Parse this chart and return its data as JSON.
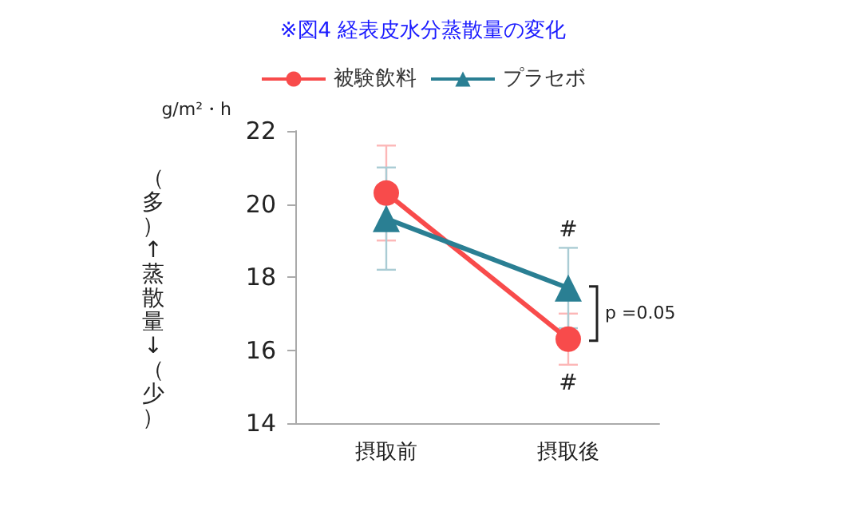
{
  "chart_data": {
    "type": "line",
    "title": "※図4 経表皮水分蒸散量の変化",
    "ylabel": "g/m²・h",
    "categories": [
      "摂取前",
      "摂取後"
    ],
    "series": [
      {
        "name": "被験飲料",
        "color": "#f84b4b",
        "marker": "circle",
        "values": [
          20.3,
          16.3
        ],
        "errors": [
          1.3,
          0.7
        ]
      },
      {
        "name": "プラセボ",
        "color": "#2a7f93",
        "marker": "triangle",
        "values": [
          19.6,
          17.7
        ],
        "errors": [
          1.4,
          1.1
        ]
      }
    ],
    "ylim": [
      14,
      22
    ],
    "yticks": [
      14,
      16,
      18,
      20,
      22
    ],
    "grid": false,
    "legend": "top",
    "annotations": [
      "（多）↑蒸散量↓（少）",
      {
        "text": "#",
        "x": "摂取後",
        "y": 18.8
      },
      {
        "text": "#",
        "x": "摂取後",
        "y": 15.6
      },
      {
        "text": "p =0.05",
        "x": "摂取後",
        "y": 17.0
      }
    ]
  }
}
